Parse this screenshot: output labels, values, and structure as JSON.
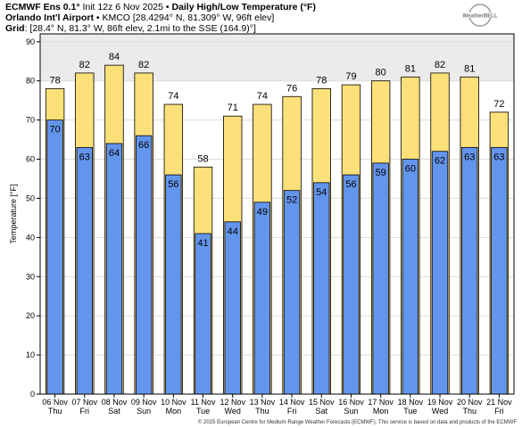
{
  "header": {
    "line1_bold": "ECMWF Ens 0.1°",
    "line1_rest": " Init 12z 6 Nov 2025 • ",
    "line1_bold2": "Daily High/Low Temperature (°F)",
    "line2_bold": "Orlando Int'l Airport",
    "line2_rest": " • KMCO [28.4294° N, 81.309° W, 96ft elev]",
    "line3_bold": "Grid",
    "line3_rest": ": [28.4° N, 81.3° W, 86ft elev, 2.1mi to the SSE (164.9)°]"
  },
  "logo": {
    "text": "WeatherBELL",
    "icon": "bell-logo-icon"
  },
  "copyright": "© 2025 European Centre for Medium-Range Weather Forecasts (ECMWF). This service is based on data and products of the ECMWF",
  "colors": {
    "high": "#fce07a",
    "low": "#6495ed",
    "outline": "#000000",
    "grid": "#dcdcdc",
    "band": "#ebebeb"
  },
  "chart_data": {
    "type": "bar",
    "title": "Daily High/Low Temperature (°F)",
    "xlabel": "",
    "ylabel": "Temperature [°F]",
    "ylim": [
      0,
      92
    ],
    "yticks": [
      0,
      10,
      20,
      30,
      40,
      50,
      60,
      70,
      80,
      90
    ],
    "grid": true,
    "categories": [
      "06 Nov",
      "07 Nov",
      "08 Nov",
      "09 Nov",
      "10 Nov",
      "11 Nov",
      "12 Nov",
      "13 Nov",
      "14 Nov",
      "15 Nov",
      "16 Nov",
      "17 Nov",
      "18 Nov",
      "19 Nov",
      "20 Nov",
      "21 Nov"
    ],
    "weekdays": [
      "Thu",
      "Fri",
      "Sat",
      "Sun",
      "Mon",
      "Tue",
      "Wed",
      "Thu",
      "Fri",
      "Sat",
      "Sun",
      "Mon",
      "Tue",
      "Wed",
      "Thu",
      "Fri"
    ],
    "series": [
      {
        "values": [
          78,
          82,
          84,
          82,
          74,
          58,
          71,
          74,
          76,
          78,
          79,
          80,
          81,
          82,
          81,
          72
        ]
      },
      {
        "values": [
          70,
          63,
          64,
          66,
          56,
          41,
          44,
          49,
          52,
          54,
          56,
          59,
          60,
          62,
          63,
          63
        ]
      }
    ]
  }
}
